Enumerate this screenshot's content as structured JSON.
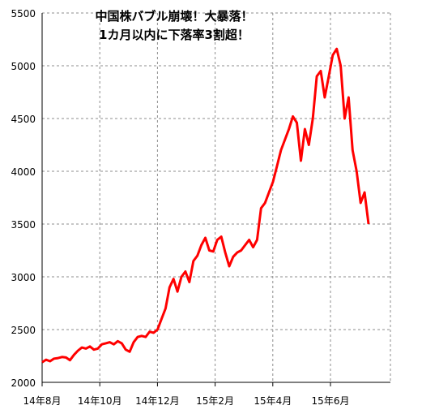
{
  "chart_data": {
    "type": "line",
    "title": [
      "中国株バブル崩壊！大暴落！",
      "1カ月以内に下落率3割超！"
    ],
    "xlabel": "",
    "ylabel": "",
    "ylim": [
      2000,
      5500
    ],
    "yticks": [
      2000,
      2500,
      3000,
      3500,
      4000,
      4500,
      5000,
      5500
    ],
    "xticks": [
      "14年8月",
      "14年10月",
      "14年12月",
      "15年2月",
      "15年4月",
      "15年6月"
    ],
    "grid": true,
    "line_color": "#ff0000",
    "series": [
      {
        "values": [
          2190,
          2215,
          2200,
          2225,
          2230,
          2240,
          2235,
          2210,
          2260,
          2300,
          2330,
          2320,
          2340,
          2310,
          2320,
          2360,
          2370,
          2380,
          2360,
          2390,
          2370,
          2310,
          2290,
          2380,
          2430,
          2440,
          2430,
          2480,
          2470,
          2500,
          2600,
          2700,
          2900,
          2980,
          2860,
          3000,
          3050,
          2950,
          3150,
          3200,
          3300,
          3370,
          3250,
          3240,
          3350,
          3380,
          3230,
          3100,
          3190,
          3230,
          3250,
          3300,
          3350,
          3280,
          3350,
          3650,
          3700,
          3800,
          3900,
          4050,
          4200,
          4300,
          4400,
          4520,
          4460,
          4100,
          4400,
          4250,
          4500,
          4900,
          4950,
          4700,
          4900,
          5100,
          5160,
          5000,
          4500,
          4700,
          4200,
          4000,
          3700,
          3800,
          3500
        ]
      }
    ]
  }
}
